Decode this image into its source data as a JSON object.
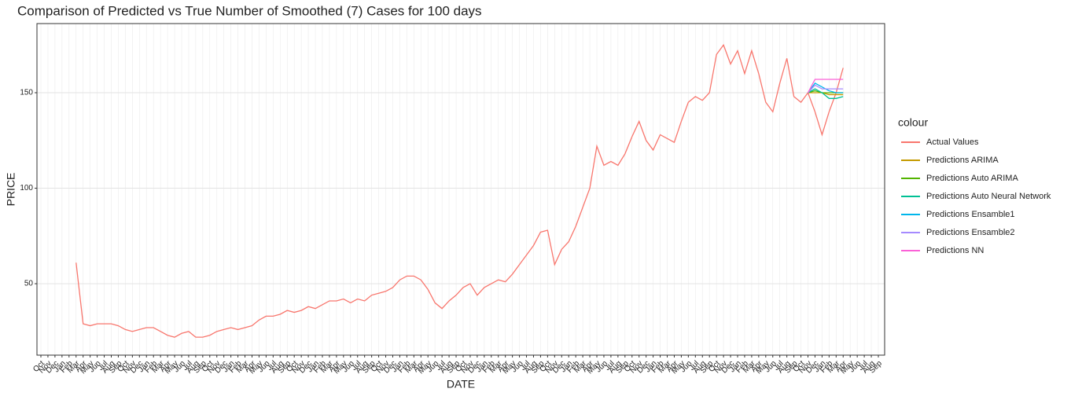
{
  "chart_data": {
    "type": "line",
    "title": "Comparison of Predicted vs True Number of Smoothed (7) Cases for 100 days",
    "x_label": "DATE",
    "y_label": "PRICE",
    "legend_title": "colour",
    "categories": [
      "Oct",
      "Nov",
      "Dec",
      "Jan",
      "Feb",
      "Mar",
      "Apr",
      "May",
      "Jun",
      "Jul",
      "Aug",
      "Sep",
      "Oct",
      "Nov",
      "Dec",
      "Jan",
      "Feb",
      "Mar",
      "Apr",
      "May",
      "Jun",
      "Jul",
      "Aug",
      "Sep",
      "Oct",
      "Nov",
      "Dec",
      "Jan",
      "Feb",
      "Mar",
      "Apr",
      "May",
      "Jun",
      "Jul",
      "Aug",
      "Sep",
      "Oct",
      "Nov",
      "Dec",
      "Jan",
      "Feb",
      "Mar",
      "Apr",
      "May",
      "Jun",
      "Jul",
      "Aug",
      "Sep",
      "Oct",
      "Nov",
      "Dec",
      "Jan",
      "Feb",
      "Mar",
      "Apr",
      "May",
      "Jun",
      "Jul",
      "Aug",
      "Sep",
      "Oct",
      "Nov",
      "Dec",
      "Jan",
      "Feb",
      "Mar",
      "Apr",
      "May",
      "Jun",
      "Jul",
      "Aug",
      "Sep",
      "Oct",
      "Nov",
      "Dec",
      "Jan",
      "Feb",
      "Mar",
      "Apr",
      "May",
      "Jun",
      "Jul",
      "Aug",
      "Sep",
      "Oct",
      "Nov",
      "Dec",
      "Jan",
      "Feb",
      "Mar",
      "Apr",
      "May",
      "Jun",
      "Jul",
      "Aug",
      "Sep",
      "Oct",
      "Nov",
      "Dec",
      "Jan",
      "Feb",
      "Mar",
      "Apr",
      "May",
      "Jun",
      "Jul",
      "Aug",
      "Sep",
      "Oct",
      "Nov",
      "Dec",
      "Jan",
      "Feb",
      "Mar",
      "Apr",
      "May",
      "Jun",
      "Jul",
      "Aug",
      "Sep"
    ],
    "series": [
      {
        "name": "Actual Values",
        "color": "#F8766D",
        "values": [
          null,
          null,
          null,
          null,
          null,
          61,
          29,
          28,
          29,
          29,
          29,
          28,
          26,
          25,
          26,
          27,
          27,
          25,
          23,
          22,
          24,
          25,
          22,
          22,
          23,
          25,
          26,
          27,
          26,
          27,
          28,
          31,
          33,
          33,
          34,
          36,
          35,
          36,
          38,
          37,
          39,
          41,
          41,
          42,
          40,
          42,
          41,
          44,
          45,
          46,
          48,
          52,
          54,
          54,
          52,
          47,
          40,
          37,
          41,
          44,
          48,
          50,
          44,
          48,
          50,
          52,
          51,
          55,
          60,
          65,
          70,
          77,
          78,
          60,
          68,
          72,
          80,
          90,
          100,
          122,
          112,
          114,
          112,
          118,
          127,
          135,
          125,
          120,
          128,
          126,
          124,
          135,
          145,
          148,
          146,
          150,
          170,
          175,
          165,
          172,
          160,
          172,
          160,
          145,
          140,
          155,
          168,
          148,
          145,
          150,
          140,
          128,
          140,
          150,
          163,
          null,
          null,
          null,
          null,
          null
        ]
      },
      {
        "name": "Predictions ARIMA",
        "color": "#C49A00",
        "values": [
          null,
          null,
          null,
          null,
          null,
          null,
          null,
          null,
          null,
          null,
          null,
          null,
          null,
          null,
          null,
          null,
          null,
          null,
          null,
          null,
          null,
          null,
          null,
          null,
          null,
          null,
          null,
          null,
          null,
          null,
          null,
          null,
          null,
          null,
          null,
          null,
          null,
          null,
          null,
          null,
          null,
          null,
          null,
          null,
          null,
          null,
          null,
          null,
          null,
          null,
          null,
          null,
          null,
          null,
          null,
          null,
          null,
          null,
          null,
          null,
          null,
          null,
          null,
          null,
          null,
          null,
          null,
          null,
          null,
          null,
          null,
          null,
          null,
          null,
          null,
          null,
          null,
          null,
          null,
          null,
          null,
          null,
          null,
          null,
          null,
          null,
          null,
          null,
          null,
          null,
          null,
          null,
          null,
          null,
          null,
          null,
          null,
          null,
          null,
          null,
          null,
          null,
          null,
          null,
          null,
          null,
          null,
          null,
          null,
          150,
          150,
          150,
          149,
          149,
          149,
          null,
          null,
          null,
          null,
          null
        ]
      },
      {
        "name": "Predictions Auto ARIMA",
        "color": "#53B400",
        "values": [
          null,
          null,
          null,
          null,
          null,
          null,
          null,
          null,
          null,
          null,
          null,
          null,
          null,
          null,
          null,
          null,
          null,
          null,
          null,
          null,
          null,
          null,
          null,
          null,
          null,
          null,
          null,
          null,
          null,
          null,
          null,
          null,
          null,
          null,
          null,
          null,
          null,
          null,
          null,
          null,
          null,
          null,
          null,
          null,
          null,
          null,
          null,
          null,
          null,
          null,
          null,
          null,
          null,
          null,
          null,
          null,
          null,
          null,
          null,
          null,
          null,
          null,
          null,
          null,
          null,
          null,
          null,
          null,
          null,
          null,
          null,
          null,
          null,
          null,
          null,
          null,
          null,
          null,
          null,
          null,
          null,
          null,
          null,
          null,
          null,
          null,
          null,
          null,
          null,
          null,
          null,
          null,
          null,
          null,
          null,
          null,
          null,
          null,
          null,
          null,
          null,
          null,
          null,
          null,
          null,
          null,
          null,
          null,
          null,
          150,
          151,
          150,
          150,
          150,
          150,
          null,
          null,
          null,
          null,
          null
        ]
      },
      {
        "name": "Predictions Auto Neural Network",
        "color": "#00C094",
        "values": [
          null,
          null,
          null,
          null,
          null,
          null,
          null,
          null,
          null,
          null,
          null,
          null,
          null,
          null,
          null,
          null,
          null,
          null,
          null,
          null,
          null,
          null,
          null,
          null,
          null,
          null,
          null,
          null,
          null,
          null,
          null,
          null,
          null,
          null,
          null,
          null,
          null,
          null,
          null,
          null,
          null,
          null,
          null,
          null,
          null,
          null,
          null,
          null,
          null,
          null,
          null,
          null,
          null,
          null,
          null,
          null,
          null,
          null,
          null,
          null,
          null,
          null,
          null,
          null,
          null,
          null,
          null,
          null,
          null,
          null,
          null,
          null,
          null,
          null,
          null,
          null,
          null,
          null,
          null,
          null,
          null,
          null,
          null,
          null,
          null,
          null,
          null,
          null,
          null,
          null,
          null,
          null,
          null,
          null,
          null,
          null,
          null,
          null,
          null,
          null,
          null,
          null,
          null,
          null,
          null,
          null,
          null,
          null,
          null,
          150,
          152,
          150,
          147,
          147,
          148,
          null,
          null,
          null,
          null,
          null
        ]
      },
      {
        "name": "Predictions Ensamble1",
        "color": "#00B6EB",
        "values": [
          null,
          null,
          null,
          null,
          null,
          null,
          null,
          null,
          null,
          null,
          null,
          null,
          null,
          null,
          null,
          null,
          null,
          null,
          null,
          null,
          null,
          null,
          null,
          null,
          null,
          null,
          null,
          null,
          null,
          null,
          null,
          null,
          null,
          null,
          null,
          null,
          null,
          null,
          null,
          null,
          null,
          null,
          null,
          null,
          null,
          null,
          null,
          null,
          null,
          null,
          null,
          null,
          null,
          null,
          null,
          null,
          null,
          null,
          null,
          null,
          null,
          null,
          null,
          null,
          null,
          null,
          null,
          null,
          null,
          null,
          null,
          null,
          null,
          null,
          null,
          null,
          null,
          null,
          null,
          null,
          null,
          null,
          null,
          null,
          null,
          null,
          null,
          null,
          null,
          null,
          null,
          null,
          null,
          null,
          null,
          null,
          null,
          null,
          null,
          null,
          null,
          null,
          null,
          null,
          null,
          null,
          null,
          null,
          null,
          150,
          155,
          153,
          151,
          150,
          150,
          null,
          null,
          null,
          null,
          null
        ]
      },
      {
        "name": "Predictions Ensamble2",
        "color": "#A58AFF",
        "values": [
          null,
          null,
          null,
          null,
          null,
          null,
          null,
          null,
          null,
          null,
          null,
          null,
          null,
          null,
          null,
          null,
          null,
          null,
          null,
          null,
          null,
          null,
          null,
          null,
          null,
          null,
          null,
          null,
          null,
          null,
          null,
          null,
          null,
          null,
          null,
          null,
          null,
          null,
          null,
          null,
          null,
          null,
          null,
          null,
          null,
          null,
          null,
          null,
          null,
          null,
          null,
          null,
          null,
          null,
          null,
          null,
          null,
          null,
          null,
          null,
          null,
          null,
          null,
          null,
          null,
          null,
          null,
          null,
          null,
          null,
          null,
          null,
          null,
          null,
          null,
          null,
          null,
          null,
          null,
          null,
          null,
          null,
          null,
          null,
          null,
          null,
          null,
          null,
          null,
          null,
          null,
          null,
          null,
          null,
          null,
          null,
          null,
          null,
          null,
          null,
          null,
          null,
          null,
          null,
          null,
          null,
          null,
          null,
          null,
          150,
          154,
          152,
          152,
          152,
          152,
          null,
          null,
          null,
          null,
          null
        ]
      },
      {
        "name": "Predictions NN",
        "color": "#FB61D7",
        "values": [
          null,
          null,
          null,
          null,
          null,
          null,
          null,
          null,
          null,
          null,
          null,
          null,
          null,
          null,
          null,
          null,
          null,
          null,
          null,
          null,
          null,
          null,
          null,
          null,
          null,
          null,
          null,
          null,
          null,
          null,
          null,
          null,
          null,
          null,
          null,
          null,
          null,
          null,
          null,
          null,
          null,
          null,
          null,
          null,
          null,
          null,
          null,
          null,
          null,
          null,
          null,
          null,
          null,
          null,
          null,
          null,
          null,
          null,
          null,
          null,
          null,
          null,
          null,
          null,
          null,
          null,
          null,
          null,
          null,
          null,
          null,
          null,
          null,
          null,
          null,
          null,
          null,
          null,
          null,
          null,
          null,
          null,
          null,
          null,
          null,
          null,
          null,
          null,
          null,
          null,
          null,
          null,
          null,
          null,
          null,
          null,
          null,
          null,
          null,
          null,
          null,
          null,
          null,
          null,
          null,
          null,
          null,
          null,
          null,
          150,
          157,
          157,
          157,
          157,
          157,
          null,
          null,
          null,
          null,
          null
        ]
      }
    ],
    "ylim": [
      12.6,
      186.2
    ],
    "yticks": [
      50,
      100,
      150
    ],
    "grid": true
  }
}
